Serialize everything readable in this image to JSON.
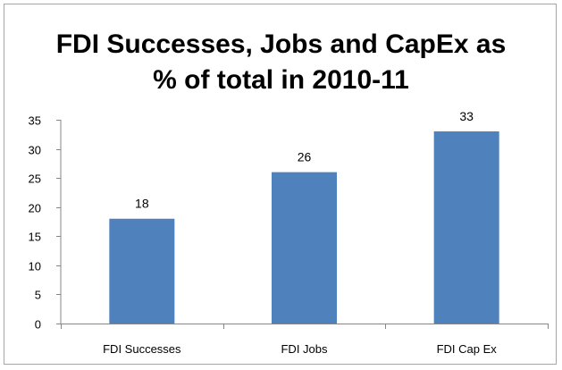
{
  "chart_data": {
    "type": "bar",
    "title_lines": [
      "FDI Successes, Jobs and CapEx as",
      "% of total in 2010-11"
    ],
    "categories": [
      "FDI Successes",
      "FDI Jobs",
      "FDI Cap Ex"
    ],
    "values": [
      18,
      26,
      33
    ],
    "data_labels": [
      "18",
      "26",
      "33"
    ],
    "ylim": [
      0,
      35
    ],
    "yticks": [
      0,
      5,
      10,
      15,
      20,
      25,
      30,
      35
    ],
    "xlabel": "",
    "ylabel": "",
    "grid": false,
    "legend": "none",
    "bar_color": "#4f81bd"
  }
}
